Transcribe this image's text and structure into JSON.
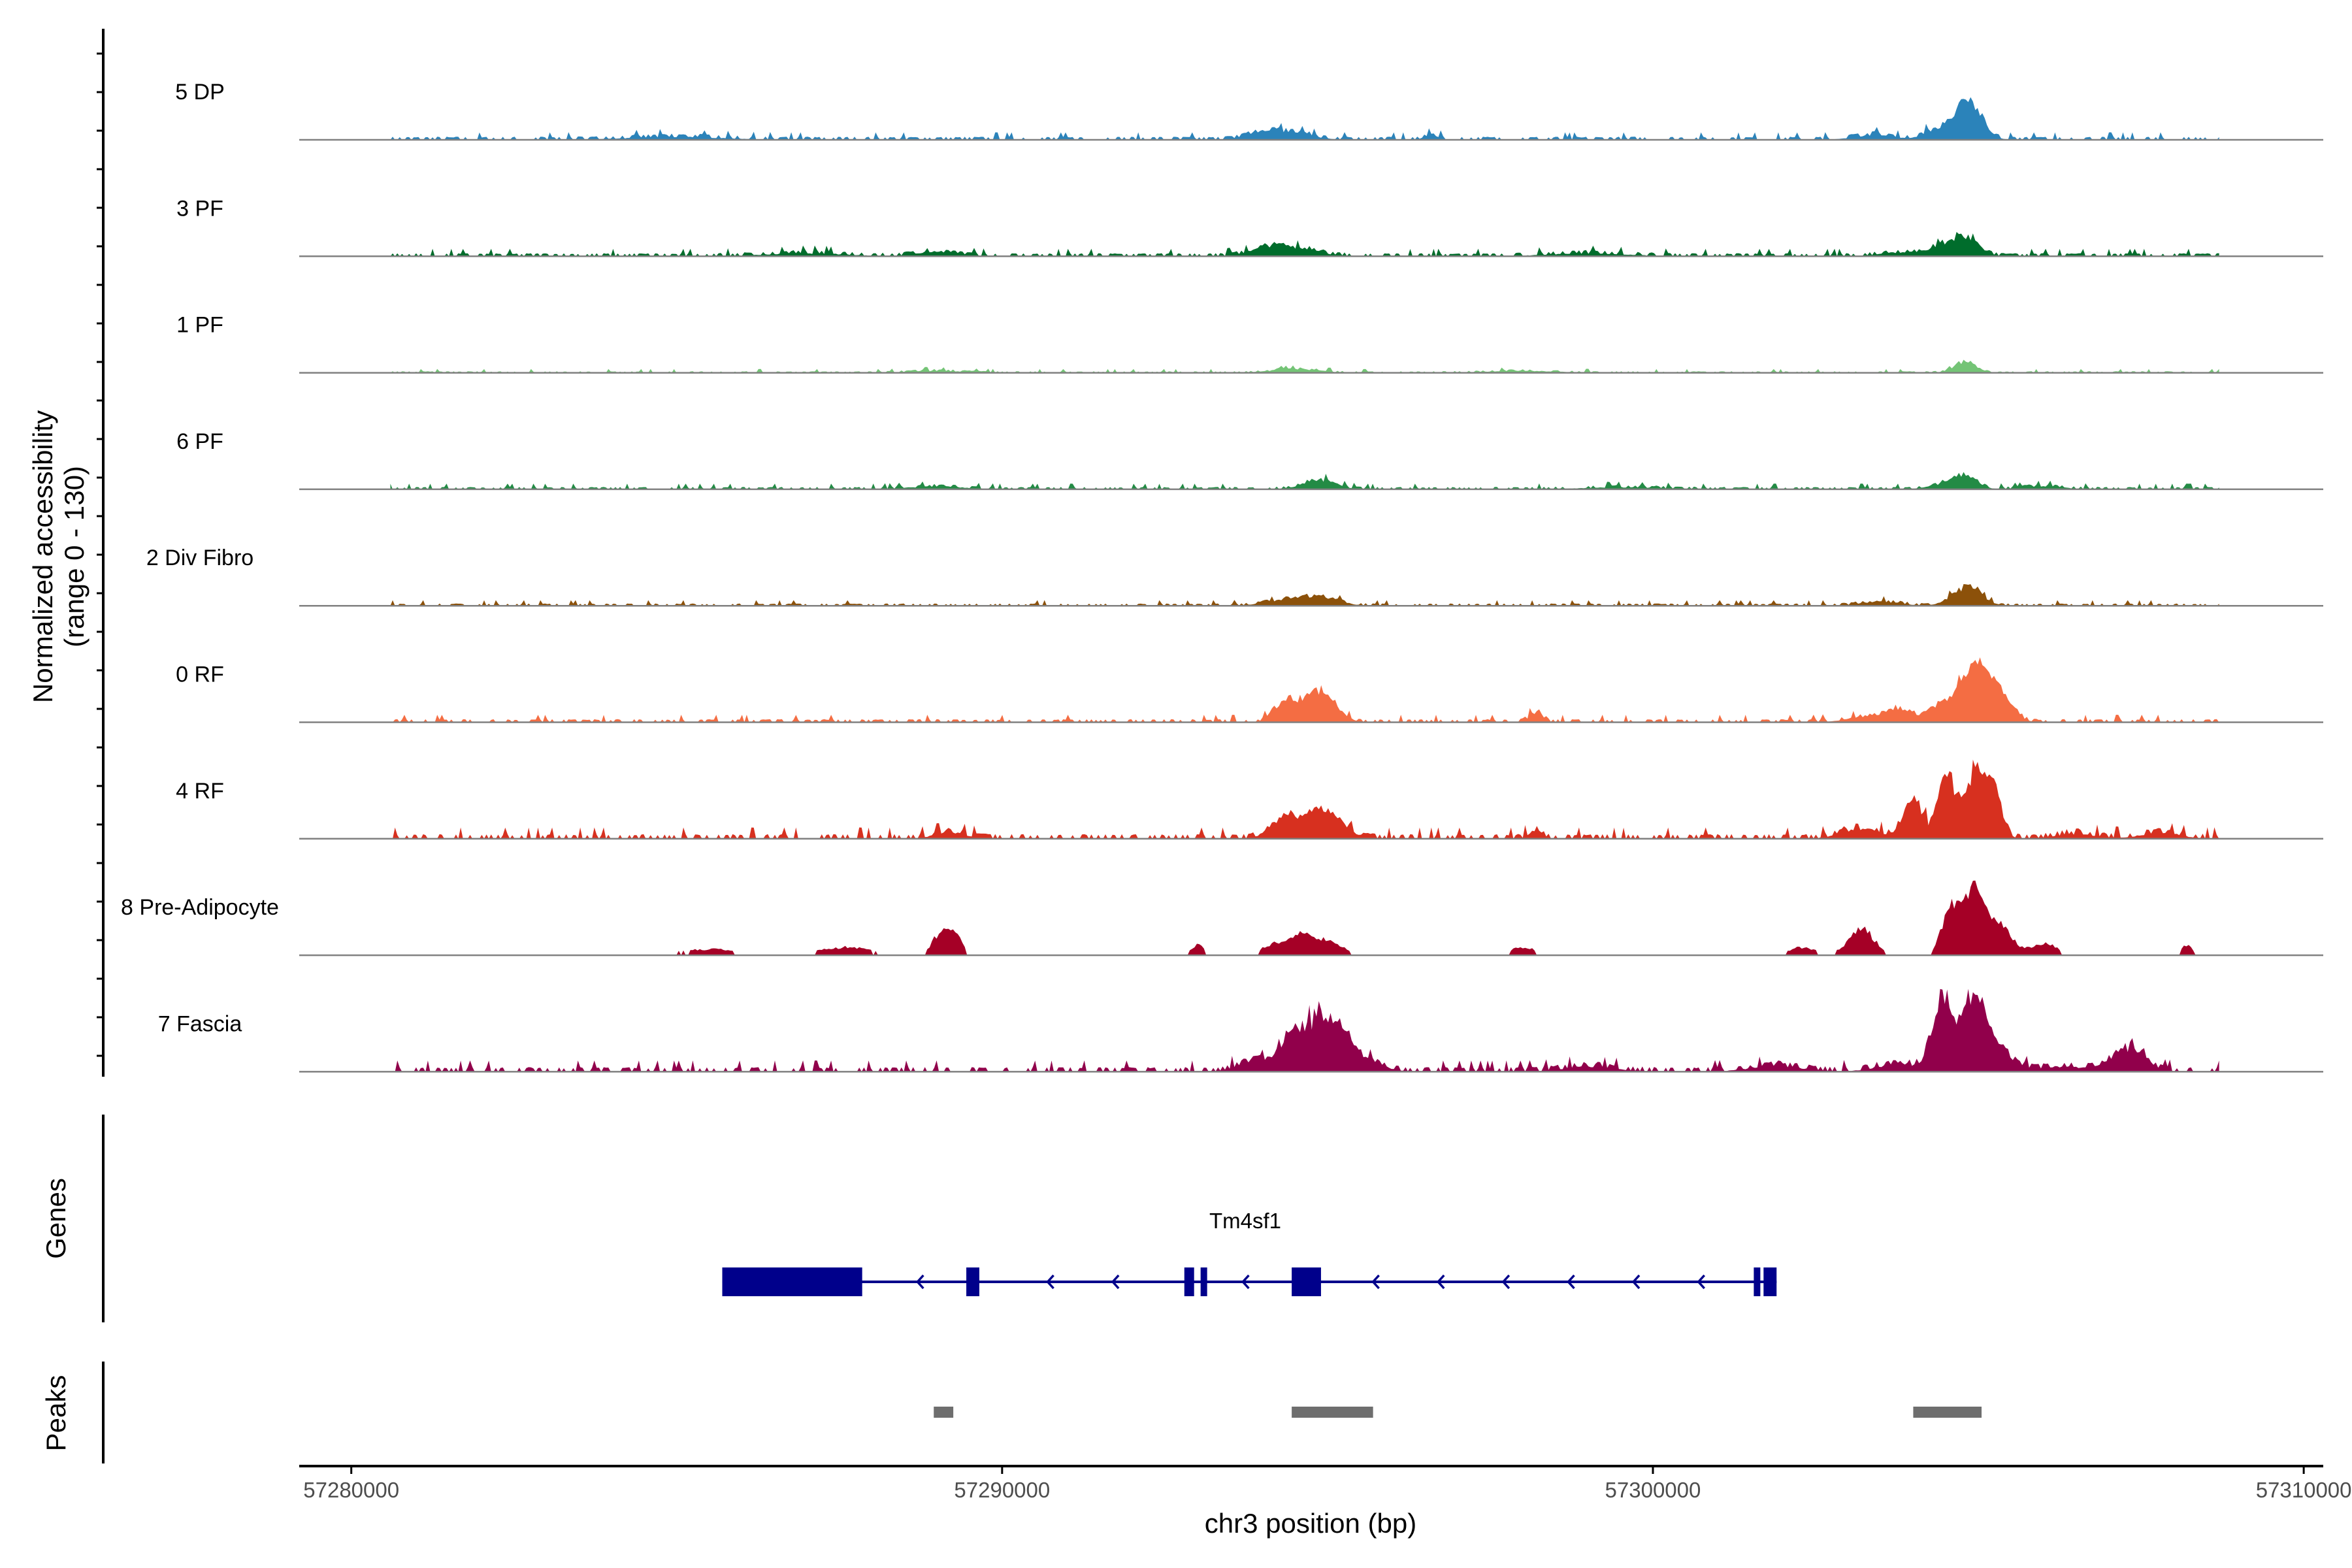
{
  "chart_data": {
    "type": "coverage-track",
    "y_axis_title_line1": "Normalized accessibility",
    "y_axis_title_line2": "(range 0 - 130)",
    "y_range": [
      0,
      130
    ],
    "x_axis_title": "chr3 position (bp)",
    "x_range": [
      57279200,
      57310300
    ],
    "x_ticks": [
      57280000,
      57290000,
      57300000,
      57310000
    ],
    "x_tick_labels": [
      "57280000",
      "57290000",
      "57300000",
      "57310000"
    ],
    "tracks": [
      {
        "label": "5 DP",
        "color": "#2b83ba",
        "bg": 2,
        "peaks": [
          [
            57285000,
            700,
            3
          ],
          [
            57294000,
            250,
            8
          ],
          [
            57294500,
            300,
            6
          ],
          [
            57296600,
            120,
            4
          ],
          [
            57303400,
            300,
            5
          ],
          [
            57304400,
            200,
            12
          ],
          [
            57304800,
            160,
            26
          ],
          [
            57304950,
            180,
            18
          ]
        ]
      },
      {
        "label": "3 PF",
        "color": "#006d2c",
        "bg": 2,
        "peaks": [
          [
            57287000,
            600,
            3
          ],
          [
            57289000,
            300,
            5
          ],
          [
            57294000,
            250,
            6
          ],
          [
            57294500,
            350,
            8
          ],
          [
            57299000,
            600,
            3
          ],
          [
            57303800,
            300,
            4
          ],
          [
            57304400,
            200,
            8
          ],
          [
            57304800,
            200,
            20
          ]
        ]
      },
      {
        "label": "1 PF",
        "color": "#74c476",
        "bg": 1,
        "peaks": [
          [
            57289000,
            400,
            2
          ],
          [
            57294500,
            350,
            4
          ],
          [
            57298000,
            500,
            2
          ],
          [
            57304800,
            170,
            10
          ]
        ]
      },
      {
        "label": "6 PF",
        "color": "#238b45",
        "bg": 1.5,
        "peaks": [
          [
            57289000,
            400,
            3
          ],
          [
            57294800,
            250,
            6
          ],
          [
            57295000,
            200,
            4
          ],
          [
            57299500,
            600,
            2
          ],
          [
            57304500,
            250,
            5
          ],
          [
            57304800,
            180,
            12
          ],
          [
            57306000,
            300,
            3
          ]
        ]
      },
      {
        "label": "2 Div Fibro",
        "color": "#8c510a",
        "bg": 1.5,
        "peaks": [
          [
            57294500,
            350,
            8
          ],
          [
            57295000,
            250,
            5
          ],
          [
            57303500,
            300,
            4
          ],
          [
            57304700,
            200,
            8
          ],
          [
            57304900,
            200,
            12
          ]
        ]
      },
      {
        "label": "0 RF",
        "color": "#f46d43",
        "bg": 2,
        "peaks": [
          [
            57294300,
            150,
            14
          ],
          [
            57294700,
            250,
            22
          ],
          [
            57295000,
            200,
            16
          ],
          [
            57298200,
            100,
            10
          ],
          [
            57303300,
            300,
            6
          ],
          [
            57303800,
            200,
            12
          ],
          [
            57304400,
            150,
            18
          ],
          [
            57304900,
            200,
            56
          ],
          [
            57305300,
            200,
            30
          ]
        ]
      },
      {
        "label": "4 RF",
        "color": "#d7301f",
        "bg": 3,
        "peaks": [
          [
            57289200,
            250,
            6
          ],
          [
            57294300,
            200,
            18
          ],
          [
            57294900,
            300,
            28
          ],
          [
            57298200,
            100,
            8
          ],
          [
            57303200,
            300,
            10
          ],
          [
            57304000,
            150,
            36
          ],
          [
            57304500,
            120,
            60
          ],
          [
            57304950,
            180,
            66
          ],
          [
            57305250,
            120,
            40
          ],
          [
            57306500,
            300,
            5
          ],
          [
            57307800,
            300,
            6
          ]
        ]
      },
      {
        "label": "8 Pre-Adipocyte",
        "color": "#a50026",
        "bg": 0,
        "peaks": [
          [
            57289100,
            150,
            26
          ],
          [
            57289300,
            100,
            12
          ],
          [
            57287600,
            400,
            8
          ],
          [
            57285500,
            500,
            6
          ],
          [
            57293000,
            100,
            10
          ],
          [
            57294200,
            200,
            12
          ],
          [
            57294600,
            150,
            18
          ],
          [
            57295000,
            200,
            16
          ],
          [
            57298000,
            200,
            8
          ],
          [
            57302300,
            200,
            8
          ],
          [
            57303200,
            200,
            26
          ],
          [
            57304600,
            150,
            48
          ],
          [
            57304950,
            150,
            58
          ],
          [
            57305300,
            200,
            30
          ],
          [
            57306000,
            200,
            12
          ],
          [
            57308200,
            80,
            10
          ]
        ]
      },
      {
        "label": "7 Fascia",
        "color": "#91004b",
        "bg": 3,
        "peaks": [
          [
            57293900,
            250,
            12
          ],
          [
            57294400,
            150,
            24
          ],
          [
            57294800,
            250,
            44
          ],
          [
            57295200,
            250,
            30
          ],
          [
            57295700,
            250,
            6
          ],
          [
            57299000,
            400,
            5
          ],
          [
            57303800,
            350,
            8
          ],
          [
            57304450,
            150,
            74
          ],
          [
            57304900,
            160,
            58
          ],
          [
            57305200,
            250,
            30
          ],
          [
            57307300,
            250,
            24
          ],
          [
            57306300,
            400,
            5
          ],
          [
            57301900,
            400,
            6
          ]
        ]
      }
    ],
    "genes_label": "Genes",
    "gene_name": "Tm4sf1",
    "gene_strand": "-",
    "gene_color": "#00008b",
    "gene_start": 57285700,
    "gene_end": 57301900,
    "exons": [
      {
        "start": 57285700,
        "end": 57287850
      },
      {
        "start": 57289450,
        "end": 57289650
      },
      {
        "start": 57292800,
        "end": 57292950
      },
      {
        "start": 57293050,
        "end": 57293150
      },
      {
        "start": 57294450,
        "end": 57294900
      },
      {
        "start": 57301550,
        "end": 57301620
      },
      {
        "start": 57301700,
        "end": 57301900
      }
    ],
    "peaks_label": "Peaks",
    "peak_color": "#6e6e6e",
    "peak_regions": [
      {
        "start": 57288950,
        "end": 57289250
      },
      {
        "start": 57294450,
        "end": 57295700
      },
      {
        "start": 57304000,
        "end": 57305050
      }
    ]
  }
}
